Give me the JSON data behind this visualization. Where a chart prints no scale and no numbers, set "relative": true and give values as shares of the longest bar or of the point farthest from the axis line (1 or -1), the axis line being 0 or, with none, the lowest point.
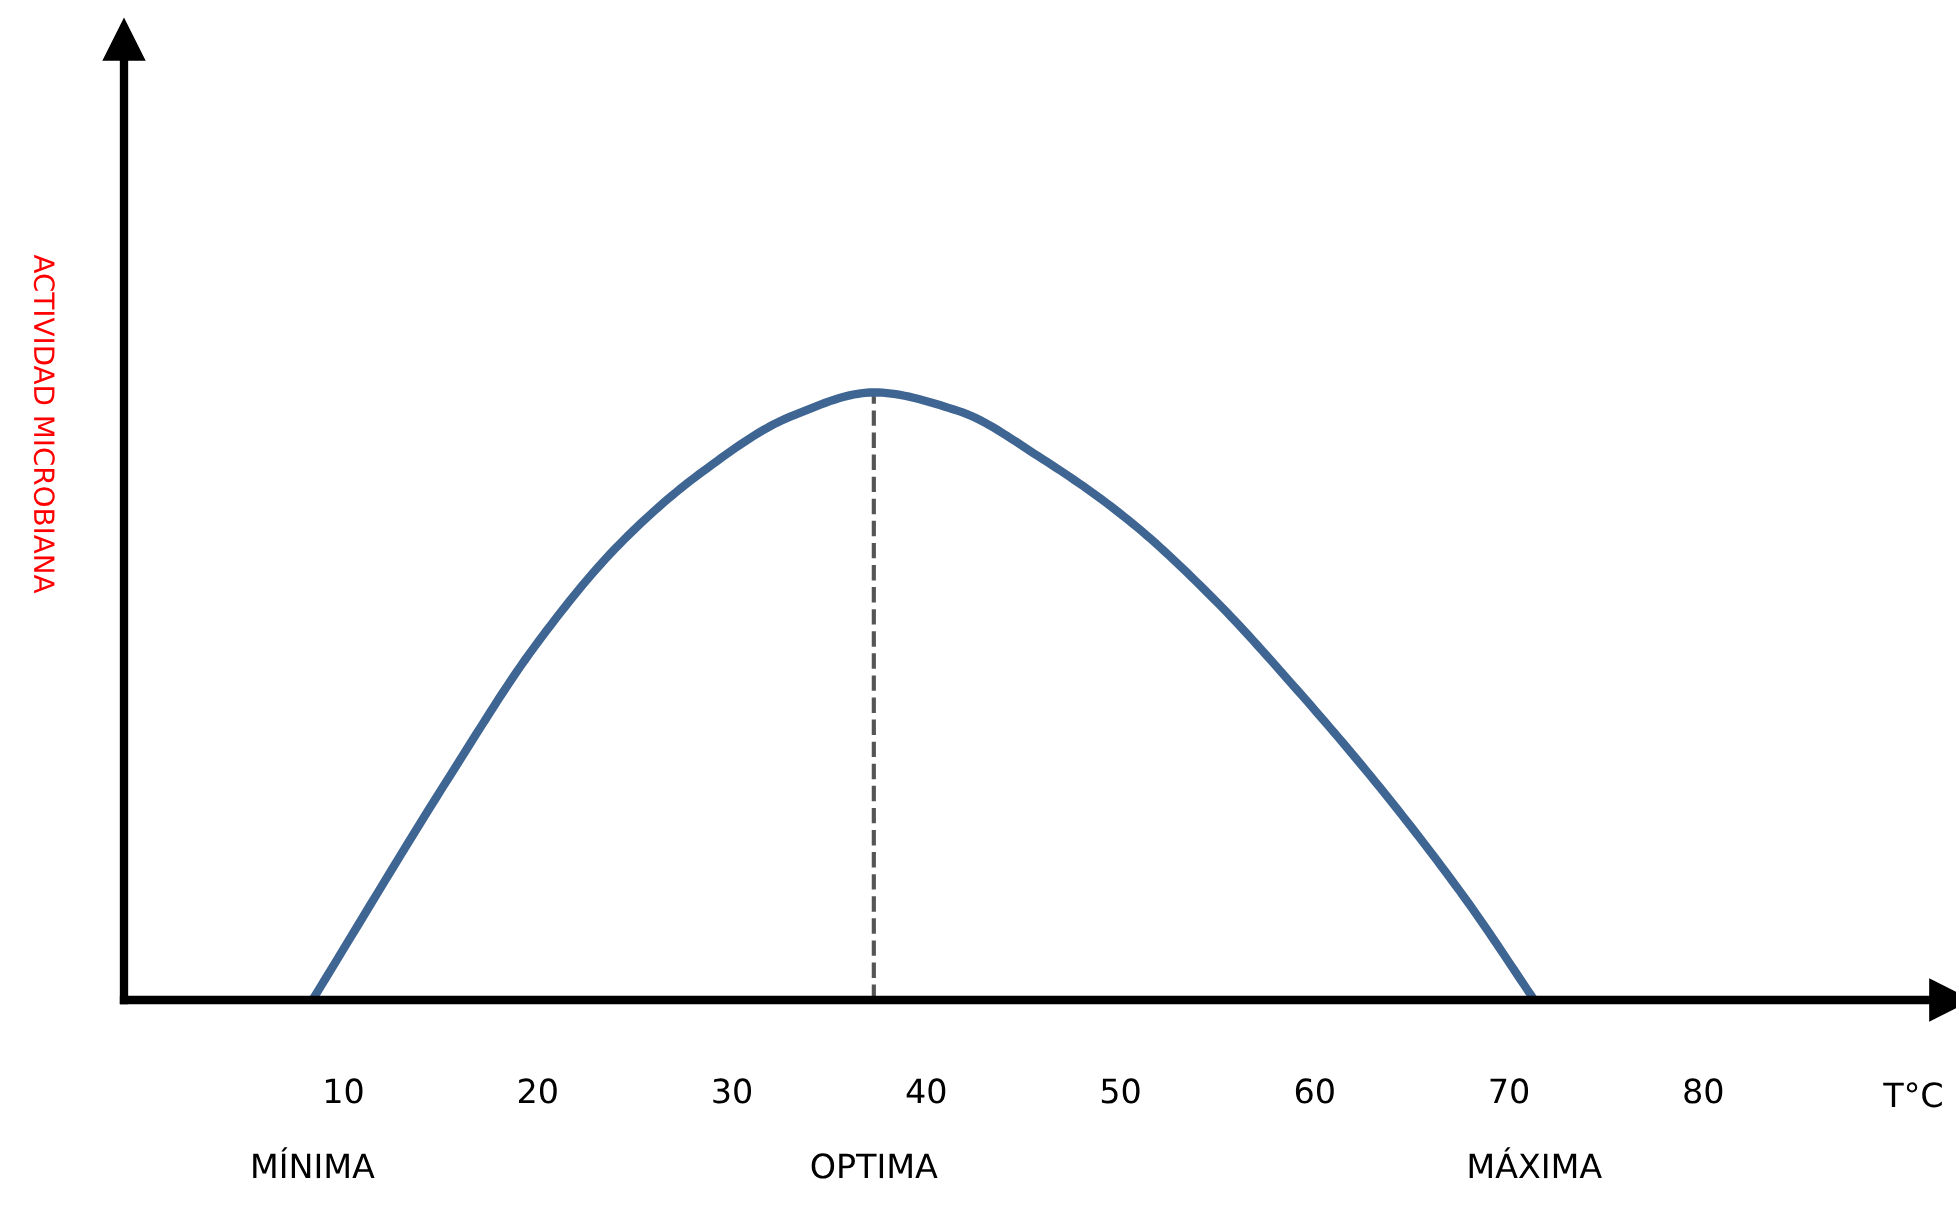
{
  "chart_data": {
    "type": "line",
    "relative": true,
    "xlabel": "T°C",
    "ylabel": "ACTIVIDAD MICROBIANA",
    "x": [
      8.4,
      15.5,
      19.8,
      24.2,
      28.5,
      33.0,
      37.3,
      41.6,
      46.0,
      50.4,
      54.8,
      59.1,
      63.6,
      67.9,
      71.3
    ],
    "series": [
      {
        "color": "#3f6593",
        "values": [
          0,
          0.37,
          0.58,
          0.75,
          0.87,
          0.96,
          1,
          0.97,
          0.89,
          0.79,
          0.66,
          0.51,
          0.34,
          0.16,
          0
        ]
      }
    ],
    "xlim": [
      -1.3,
      92.7
    ],
    "xticks": [
      10,
      20,
      30,
      40,
      50,
      60,
      70,
      80
    ],
    "ref_lines": [
      {
        "axis": "x",
        "value": 37.3,
        "color": "#555555",
        "line_style": "dashed"
      }
    ],
    "annotations": [
      "MÍNIMA",
      "OPTIMA",
      "MÁXIMA"
    ],
    "grid": false,
    "marker": "none",
    "line_style": "solid",
    "legend": false
  }
}
